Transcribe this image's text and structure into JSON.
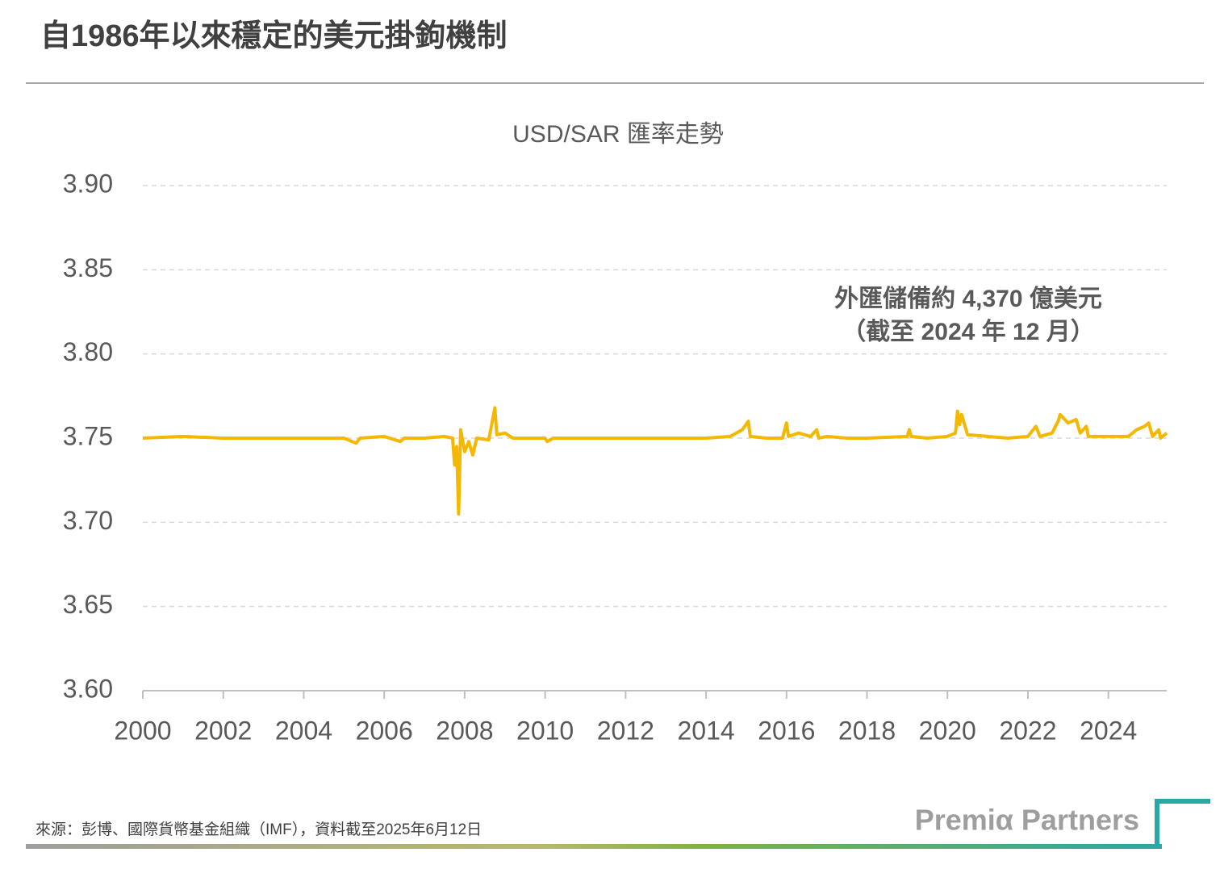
{
  "chart_data": {
    "type": "line",
    "page_title": "自1986年以來穩定的美元掛鉤機制",
    "title": "USD/SAR 匯率走勢",
    "annotations": [
      "外匯儲備約 4,370 億美元",
      "（截至 2024 年 12 月）"
    ],
    "source": "來源：彭博、國際貨幣基金組織（IMF），資料截至2025年6月12日",
    "logo": "Premiα Partners",
    "xlim": [
      2000,
      2025.45
    ],
    "xticks": [
      2000,
      2002,
      2004,
      2006,
      2008,
      2010,
      2012,
      2014,
      2016,
      2018,
      2020,
      2022,
      2024
    ],
    "ylim": [
      3.6,
      3.9
    ],
    "yticks": [
      {
        "value": 3.6,
        "label": "3.60"
      },
      {
        "value": 3.65,
        "label": "3.65"
      },
      {
        "value": 3.7,
        "label": "3.70"
      },
      {
        "value": 3.75,
        "label": "3.75"
      },
      {
        "value": 3.8,
        "label": "3.80"
      },
      {
        "value": 3.85,
        "label": "3.85"
      },
      {
        "value": 3.9,
        "label": "3.90"
      }
    ],
    "grid": true,
    "color": "#f5b800",
    "x": [
      2000,
      2001,
      2002,
      2003,
      2004,
      2005,
      2005.3,
      2005.4,
      2006,
      2006.4,
      2006.5,
      2007,
      2007.5,
      2007.7,
      2007.75,
      2007.8,
      2007.85,
      2007.9,
      2008.0,
      2008.1,
      2008.2,
      2008.3,
      2008.6,
      2008.75,
      2008.8,
      2009.0,
      2009.2,
      2010,
      2010.05,
      2010.2,
      2012,
      2014,
      2014.6,
      2014.9,
      2015.05,
      2015.1,
      2015.5,
      2015.9,
      2016.0,
      2016.05,
      2016.3,
      2016.6,
      2016.75,
      2016.8,
      2017,
      2017.5,
      2018,
      2019,
      2019.05,
      2019.1,
      2019.5,
      2020.0,
      2020.2,
      2020.25,
      2020.3,
      2020.35,
      2020.5,
      2021,
      2021.5,
      2022,
      2022.2,
      2022.3,
      2022.6,
      2022.75,
      2022.8,
      2023.0,
      2023.2,
      2023.3,
      2023.45,
      2023.5,
      2024,
      2024.5,
      2024.7,
      2024.9,
      2025.0,
      2025.1,
      2025.25,
      2025.3,
      2025.45
    ],
    "values": [
      3.75,
      3.751,
      3.75,
      3.75,
      3.75,
      3.75,
      3.747,
      3.75,
      3.751,
      3.748,
      3.75,
      3.75,
      3.751,
      3.75,
      3.734,
      3.745,
      3.705,
      3.755,
      3.742,
      3.748,
      3.74,
      3.75,
      3.749,
      3.768,
      3.752,
      3.753,
      3.75,
      3.75,
      3.748,
      3.75,
      3.75,
      3.75,
      3.751,
      3.755,
      3.76,
      3.751,
      3.75,
      3.75,
      3.759,
      3.751,
      3.753,
      3.751,
      3.755,
      3.75,
      3.751,
      3.75,
      3.75,
      3.751,
      3.755,
      3.751,
      3.75,
      3.751,
      3.753,
      3.766,
      3.758,
      3.764,
      3.752,
      3.751,
      3.75,
      3.751,
      3.757,
      3.751,
      3.753,
      3.76,
      3.764,
      3.759,
      3.761,
      3.753,
      3.757,
      3.751,
      3.751,
      3.751,
      3.755,
      3.757,
      3.759,
      3.751,
      3.755,
      3.75,
      3.753
    ]
  }
}
